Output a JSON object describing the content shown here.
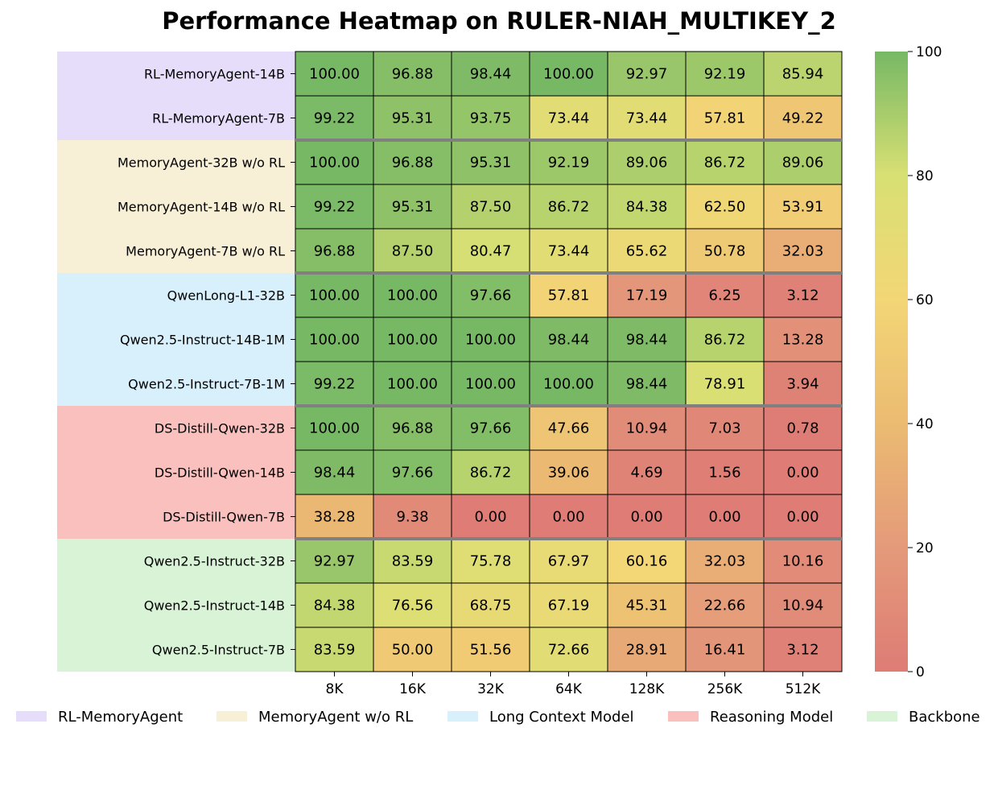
{
  "chart_data": {
    "type": "heatmap",
    "title": "Performance Heatmap on RULER-NIAH_MULTIKEY_2",
    "x_labels": [
      "8K",
      "16K",
      "32K",
      "64K",
      "128K",
      "256K",
      "512K"
    ],
    "rows": [
      {
        "label": "RL-MemoryAgent-14B",
        "group": 0,
        "values": [
          100.0,
          96.88,
          98.44,
          100.0,
          92.97,
          92.19,
          85.94
        ]
      },
      {
        "label": "RL-MemoryAgent-7B",
        "group": 0,
        "values": [
          99.22,
          95.31,
          93.75,
          73.44,
          73.44,
          57.81,
          49.22
        ]
      },
      {
        "label": "MemoryAgent-32B w/o RL",
        "group": 1,
        "values": [
          100.0,
          96.88,
          95.31,
          92.19,
          89.06,
          86.72,
          89.06
        ]
      },
      {
        "label": "MemoryAgent-14B w/o RL",
        "group": 1,
        "values": [
          99.22,
          95.31,
          87.5,
          86.72,
          84.38,
          62.5,
          53.91
        ]
      },
      {
        "label": "MemoryAgent-7B w/o RL",
        "group": 1,
        "values": [
          96.88,
          87.5,
          80.47,
          73.44,
          65.62,
          50.78,
          32.03
        ]
      },
      {
        "label": "QwenLong-L1-32B",
        "group": 2,
        "values": [
          100.0,
          100.0,
          97.66,
          57.81,
          17.19,
          6.25,
          3.12
        ]
      },
      {
        "label": "Qwen2.5-Instruct-14B-1M",
        "group": 2,
        "values": [
          100.0,
          100.0,
          100.0,
          98.44,
          98.44,
          86.72,
          13.28
        ]
      },
      {
        "label": "Qwen2.5-Instruct-7B-1M",
        "group": 2,
        "values": [
          99.22,
          100.0,
          100.0,
          100.0,
          98.44,
          78.91,
          3.94
        ]
      },
      {
        "label": "DS-Distill-Qwen-32B",
        "group": 3,
        "values": [
          100.0,
          96.88,
          97.66,
          47.66,
          10.94,
          7.03,
          0.78
        ]
      },
      {
        "label": "DS-Distill-Qwen-14B",
        "group": 3,
        "values": [
          98.44,
          97.66,
          86.72,
          39.06,
          4.69,
          1.56,
          0.0
        ]
      },
      {
        "label": "DS-Distill-Qwen-7B",
        "group": 3,
        "values": [
          38.28,
          9.38,
          0.0,
          0.0,
          0.0,
          0.0,
          0.0
        ]
      },
      {
        "label": "Qwen2.5-Instruct-32B",
        "group": 4,
        "values": [
          92.97,
          83.59,
          75.78,
          67.97,
          60.16,
          32.03,
          10.16
        ]
      },
      {
        "label": "Qwen2.5-Instruct-14B",
        "group": 4,
        "values": [
          84.38,
          76.56,
          68.75,
          67.19,
          45.31,
          22.66,
          10.94
        ]
      },
      {
        "label": "Qwen2.5-Instruct-7B",
        "group": 4,
        "values": [
          83.59,
          50.0,
          51.56,
          72.66,
          28.91,
          16.41,
          3.12
        ]
      }
    ],
    "groups": [
      {
        "name": "RL-MemoryAgent",
        "color": "#e6ddfa"
      },
      {
        "name": "MemoryAgent w/o RL",
        "color": "#f8f0d6"
      },
      {
        "name": "Long Context Model",
        "color": "#d8f0fb"
      },
      {
        "name": "Reasoning Model",
        "color": "#fac0be"
      },
      {
        "name": "Backbone",
        "color": "#d8f3d6"
      }
    ],
    "colorscale": {
      "min": 0,
      "max": 100,
      "stops": [
        {
          "value": 0,
          "color": "#de7c75"
        },
        {
          "value": 20,
          "color": "#e49a7a"
        },
        {
          "value": 40,
          "color": "#ebbb72"
        },
        {
          "value": 60,
          "color": "#f3d676"
        },
        {
          "value": 80,
          "color": "#d8e073"
        },
        {
          "value": 100,
          "color": "#77b865"
        }
      ]
    },
    "colorbar_ticks": [
      "0",
      "20",
      "40",
      "60",
      "80",
      "100"
    ],
    "value_format_decimals": 2
  }
}
